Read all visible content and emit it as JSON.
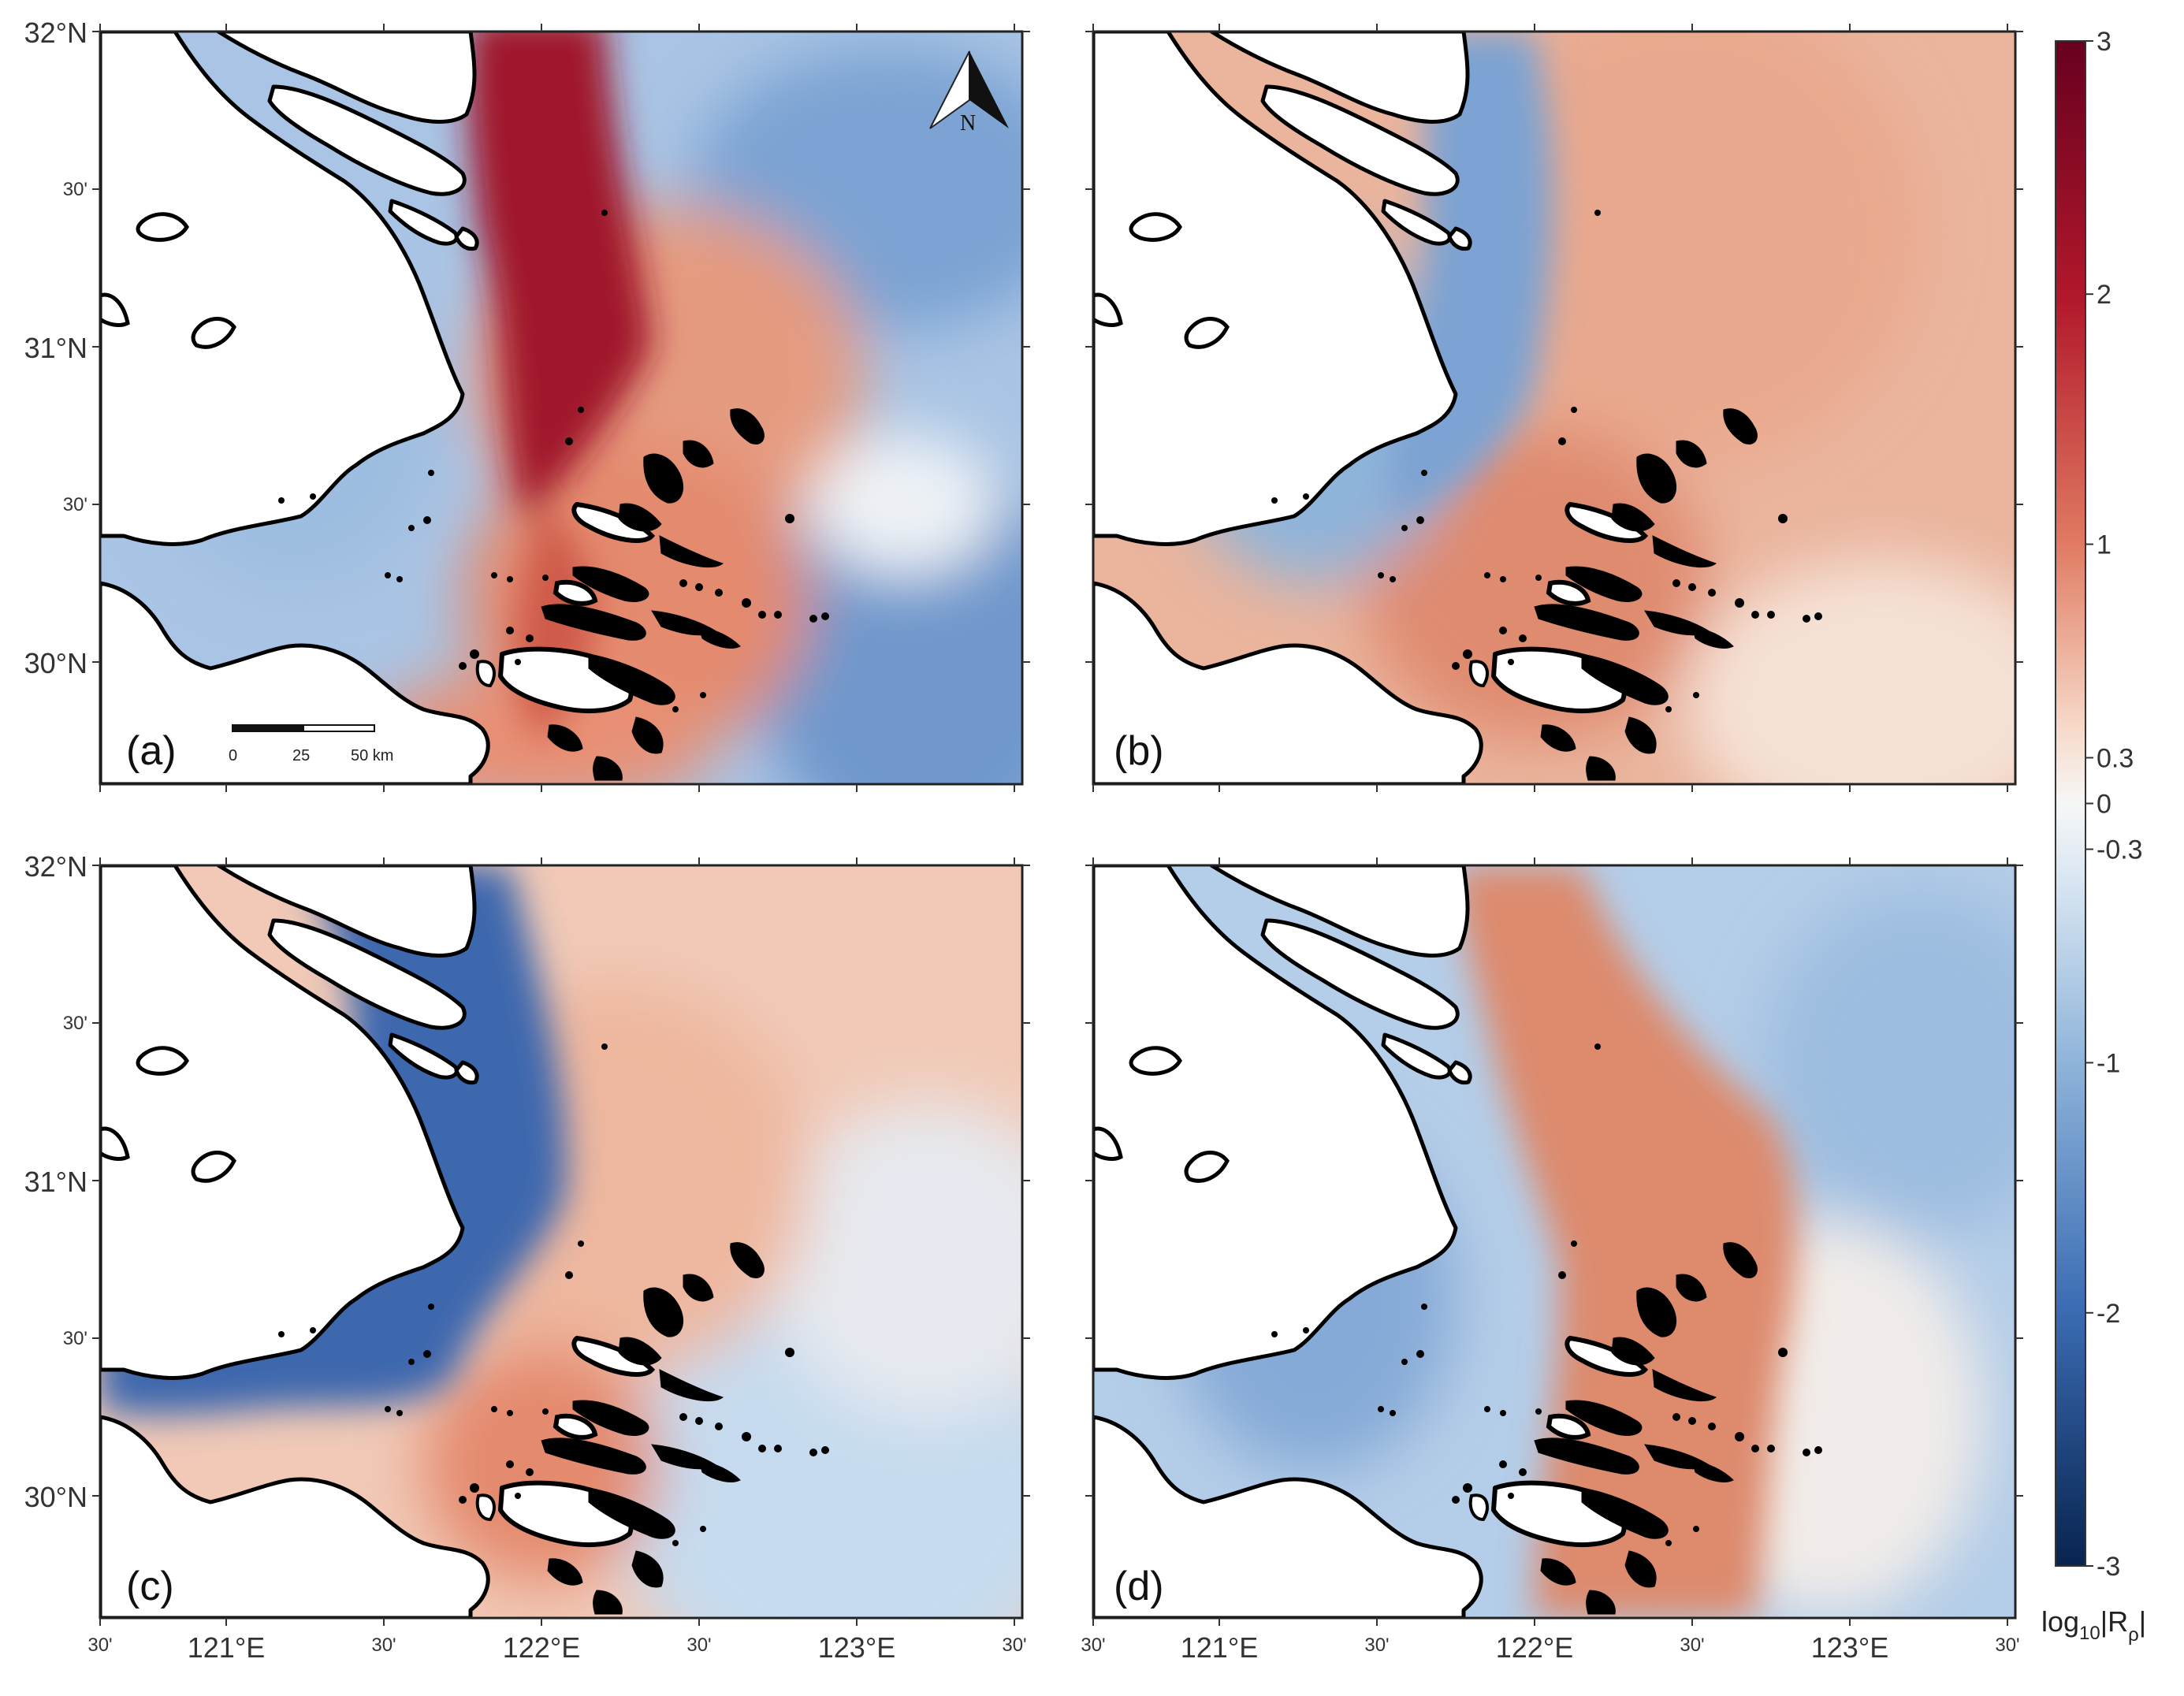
{
  "colors": {
    "deep_red": "#7a0a1c",
    "red": "#c1473e",
    "salmon": "#e59b80",
    "peach": "#f3cdb8",
    "white": "#f7f7f7",
    "pale_blue": "#c6dbef",
    "blue": "#7ba3d3",
    "deep_blue": "#3a64ad",
    "navy": "#0b2f6b",
    "land": "#ffffff",
    "coast": "#000000"
  },
  "axes": {
    "lat_ticks": [
      "32°N",
      "30'",
      "31°N",
      "30'",
      "30°N"
    ],
    "lon_ticks": [
      "30'",
      "121°E",
      "30'",
      "122°E",
      "30'",
      "123°E",
      "30'"
    ]
  },
  "panels": [
    {
      "id": "a",
      "label": "(a)"
    },
    {
      "id": "b",
      "label": "(b)"
    },
    {
      "id": "c",
      "label": "(c)"
    },
    {
      "id": "d",
      "label": "(d)"
    }
  ],
  "north_arrow": {
    "letter": "N",
    "icon": "north-arrow-icon"
  },
  "scale_bar": {
    "ticks": [
      "0",
      "25",
      "50 km"
    ]
  },
  "colorbar": {
    "ticks": [
      "3",
      "2",
      "1",
      "0.3",
      "0",
      "-0.3",
      "-1",
      "-2",
      "-3"
    ],
    "tick_values": [
      3,
      2,
      1,
      0.3,
      0,
      -0.3,
      -1,
      -2,
      -3
    ],
    "range": [
      -3,
      3
    ],
    "colormap": "diverging blue-white-red",
    "label_main": "log",
    "label_sub": "10",
    "label_rest": "|R",
    "label_rho": "ρ",
    "label_end": "|"
  }
}
